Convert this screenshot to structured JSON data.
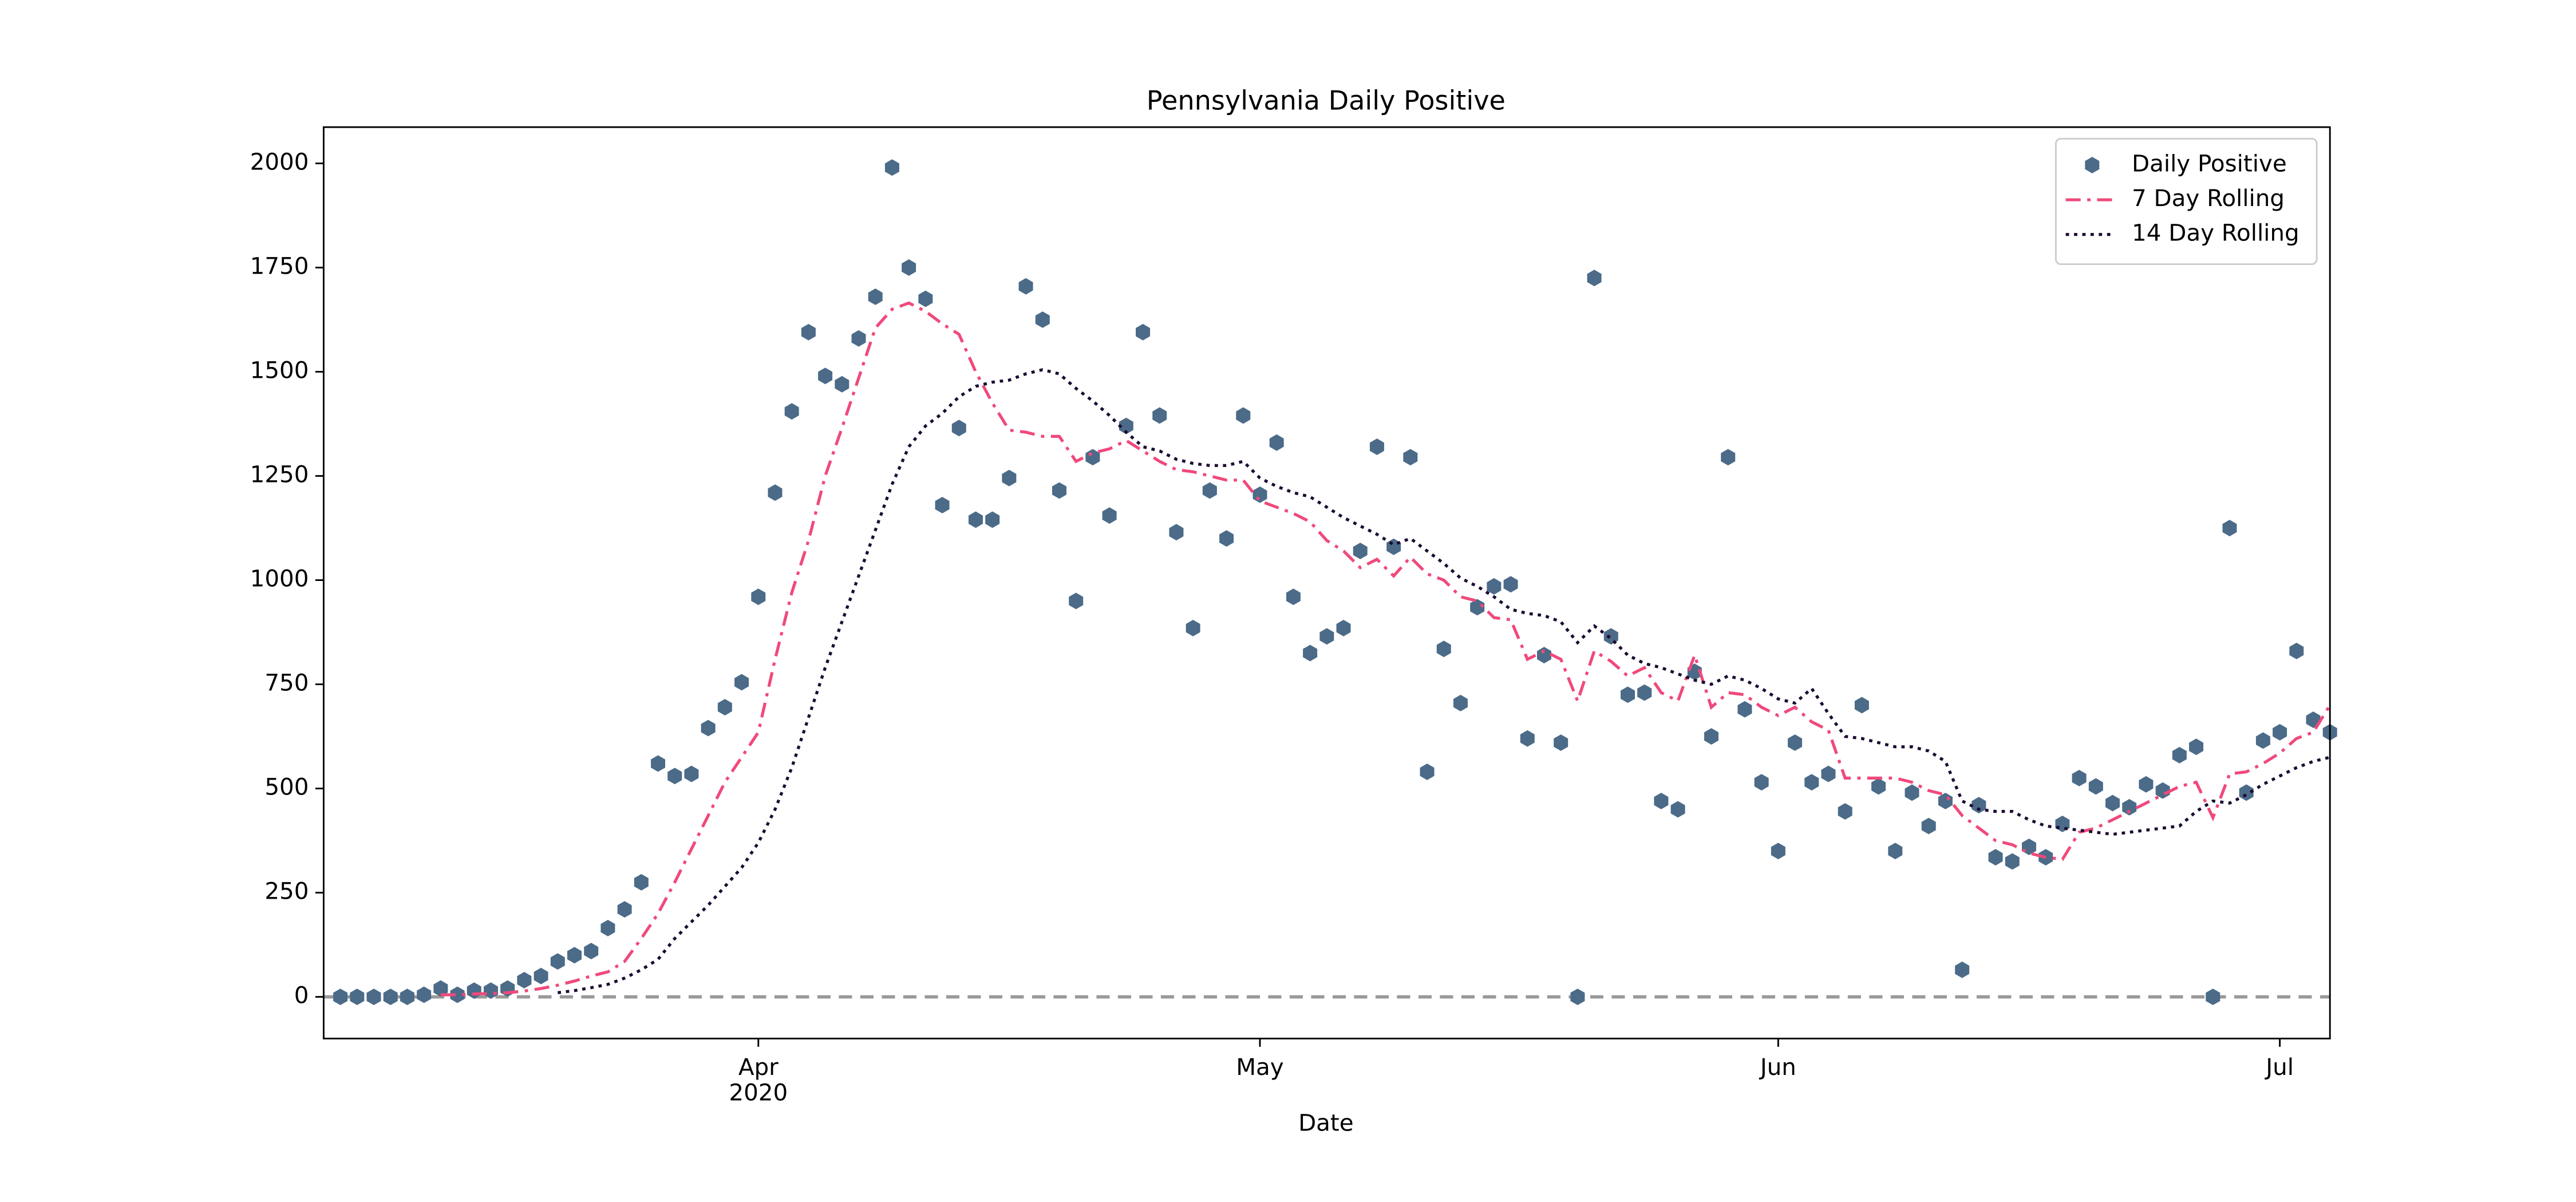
{
  "chart_data": {
    "type": "scatter-line",
    "title": "Pennsylvania Daily Positive",
    "xlabel": "Date",
    "x": [
      "2020-03-07",
      "2020-03-08",
      "2020-03-09",
      "2020-03-10",
      "2020-03-11",
      "2020-03-12",
      "2020-03-13",
      "2020-03-14",
      "2020-03-15",
      "2020-03-16",
      "2020-03-17",
      "2020-03-18",
      "2020-03-19",
      "2020-03-20",
      "2020-03-21",
      "2020-03-22",
      "2020-03-23",
      "2020-03-24",
      "2020-03-25",
      "2020-03-26",
      "2020-03-27",
      "2020-03-28",
      "2020-03-29",
      "2020-03-30",
      "2020-03-31",
      "2020-04-01",
      "2020-04-02",
      "2020-04-03",
      "2020-04-04",
      "2020-04-05",
      "2020-04-06",
      "2020-04-07",
      "2020-04-08",
      "2020-04-09",
      "2020-04-10",
      "2020-04-11",
      "2020-04-12",
      "2020-04-13",
      "2020-04-14",
      "2020-04-15",
      "2020-04-16",
      "2020-04-17",
      "2020-04-18",
      "2020-04-19",
      "2020-04-20",
      "2020-04-21",
      "2020-04-22",
      "2020-04-23",
      "2020-04-24",
      "2020-04-25",
      "2020-04-26",
      "2020-04-27",
      "2020-04-28",
      "2020-04-29",
      "2020-04-30",
      "2020-05-01",
      "2020-05-02",
      "2020-05-03",
      "2020-05-04",
      "2020-05-05",
      "2020-05-06",
      "2020-05-07",
      "2020-05-08",
      "2020-05-09",
      "2020-05-10",
      "2020-05-11",
      "2020-05-12",
      "2020-05-13",
      "2020-05-14",
      "2020-05-15",
      "2020-05-16",
      "2020-05-17",
      "2020-05-18",
      "2020-05-19",
      "2020-05-20",
      "2020-05-21",
      "2020-05-22",
      "2020-05-23",
      "2020-05-24",
      "2020-05-25",
      "2020-05-26",
      "2020-05-27",
      "2020-05-28",
      "2020-05-29",
      "2020-05-30",
      "2020-05-31",
      "2020-06-01",
      "2020-06-02",
      "2020-06-03",
      "2020-06-04",
      "2020-06-05",
      "2020-06-06",
      "2020-06-07",
      "2020-06-08",
      "2020-06-09",
      "2020-06-10",
      "2020-06-11",
      "2020-06-12",
      "2020-06-13",
      "2020-06-14",
      "2020-06-15",
      "2020-06-16",
      "2020-06-17",
      "2020-06-18",
      "2020-06-19",
      "2020-06-20",
      "2020-06-21",
      "2020-06-22",
      "2020-06-23",
      "2020-06-24",
      "2020-06-25",
      "2020-06-26",
      "2020-06-27",
      "2020-06-28",
      "2020-06-29",
      "2020-06-30",
      "2020-07-01",
      "2020-07-02",
      "2020-07-03",
      "2020-07-04"
    ],
    "series": [
      {
        "name": "Daily Positive",
        "style": "marker",
        "color": "#4b6b88",
        "values": [
          0,
          0,
          0,
          0,
          0,
          5,
          20,
          5,
          15,
          15,
          20,
          40,
          50,
          85,
          100,
          110,
          165,
          210,
          275,
          560,
          530,
          535,
          645,
          695,
          755,
          960,
          1210,
          1405,
          1595,
          1490,
          1470,
          1580,
          1680,
          1990,
          1750,
          1675,
          1180,
          1365,
          1145,
          1145,
          1245,
          1705,
          1625,
          1215,
          950,
          1295,
          1155,
          1370,
          1595,
          1395,
          1115,
          885,
          1215,
          1100,
          1395,
          1205,
          1330,
          960,
          825,
          865,
          885,
          1070,
          1320,
          1080,
          1295,
          540,
          835,
          705,
          935,
          985,
          990,
          620,
          820,
          610,
          0,
          1725,
          865,
          725,
          730,
          470,
          450,
          780,
          625,
          1295,
          690,
          515,
          350,
          610,
          515,
          535,
          445,
          700,
          505,
          350,
          490,
          410,
          470,
          65,
          460,
          335,
          325,
          360,
          335,
          415,
          525,
          505,
          465,
          455,
          510,
          495,
          580,
          600,
          0,
          1125,
          490,
          615,
          635,
          830,
          665,
          635
        ]
      },
      {
        "name": "7 Day Rolling",
        "style": "dashdot",
        "color": "#f0497b",
        "values": [
          null,
          null,
          null,
          null,
          null,
          null,
          5,
          5,
          7,
          8,
          10,
          14,
          20,
          28,
          38,
          50,
          60,
          85,
          140,
          200,
          275,
          355,
          435,
          515,
          575,
          635,
          810,
          970,
          1095,
          1250,
          1365,
          1485,
          1605,
          1650,
          1665,
          1645,
          1615,
          1590,
          1500,
          1425,
          1360,
          1355,
          1345,
          1345,
          1285,
          1305,
          1315,
          1335,
          1310,
          1285,
          1265,
          1260,
          1250,
          1240,
          1240,
          1190,
          1175,
          1160,
          1140,
          1095,
          1070,
          1030,
          1050,
          1010,
          1055,
          1015,
          1000,
          960,
          950,
          910,
          905,
          810,
          830,
          810,
          710,
          830,
          805,
          770,
          790,
          730,
          710,
          820,
          695,
          730,
          725,
          695,
          675,
          695,
          660,
          640,
          525,
          525,
          525,
          525,
          515,
          495,
          485,
          435,
          405,
          375,
          365,
          345,
          335,
          330,
          395,
          405,
          425,
          445,
          465,
          485,
          505,
          515,
          430,
          535,
          540,
          560,
          585,
          620,
          635,
          700
        ]
      },
      {
        "name": "14 Day Rolling",
        "style": "dotted",
        "color": "#1c0b33",
        "values": [
          null,
          null,
          null,
          null,
          null,
          null,
          null,
          null,
          null,
          null,
          null,
          null,
          null,
          10,
          15,
          22,
          30,
          45,
          65,
          90,
          140,
          180,
          220,
          265,
          310,
          370,
          450,
          550,
          670,
          790,
          900,
          1010,
          1120,
          1230,
          1320,
          1370,
          1400,
          1440,
          1465,
          1475,
          1480,
          1495,
          1505,
          1495,
          1460,
          1430,
          1395,
          1355,
          1320,
          1310,
          1290,
          1280,
          1275,
          1275,
          1285,
          1245,
          1225,
          1210,
          1200,
          1175,
          1150,
          1130,
          1110,
          1085,
          1100,
          1070,
          1040,
          1005,
          985,
          960,
          930,
          920,
          915,
          900,
          850,
          890,
          860,
          820,
          800,
          790,
          775,
          760,
          750,
          770,
          760,
          740,
          715,
          705,
          740,
          680,
          625,
          620,
          610,
          600,
          600,
          590,
          565,
          470,
          450,
          445,
          445,
          425,
          410,
          405,
          400,
          395,
          390,
          395,
          400,
          405,
          410,
          445,
          470,
          465,
          485,
          510,
          530,
          550,
          565,
          575
        ]
      }
    ],
    "hline": 0,
    "xlim": [
      "2020-03-06",
      "2020-07-04"
    ],
    "xticks": [
      {
        "value": "2020-04-01",
        "label": "Apr\n2020"
      },
      {
        "value": "2020-05-01",
        "label": "May"
      },
      {
        "value": "2020-06-01",
        "label": "Jun"
      },
      {
        "value": "2020-07-01",
        "label": "Jul"
      }
    ],
    "ylim": [
      -100,
      2087
    ],
    "yticks": [
      0,
      250,
      500,
      750,
      1000,
      1250,
      1500,
      1750,
      2000
    ],
    "legend": "upper right",
    "grid": false
  }
}
